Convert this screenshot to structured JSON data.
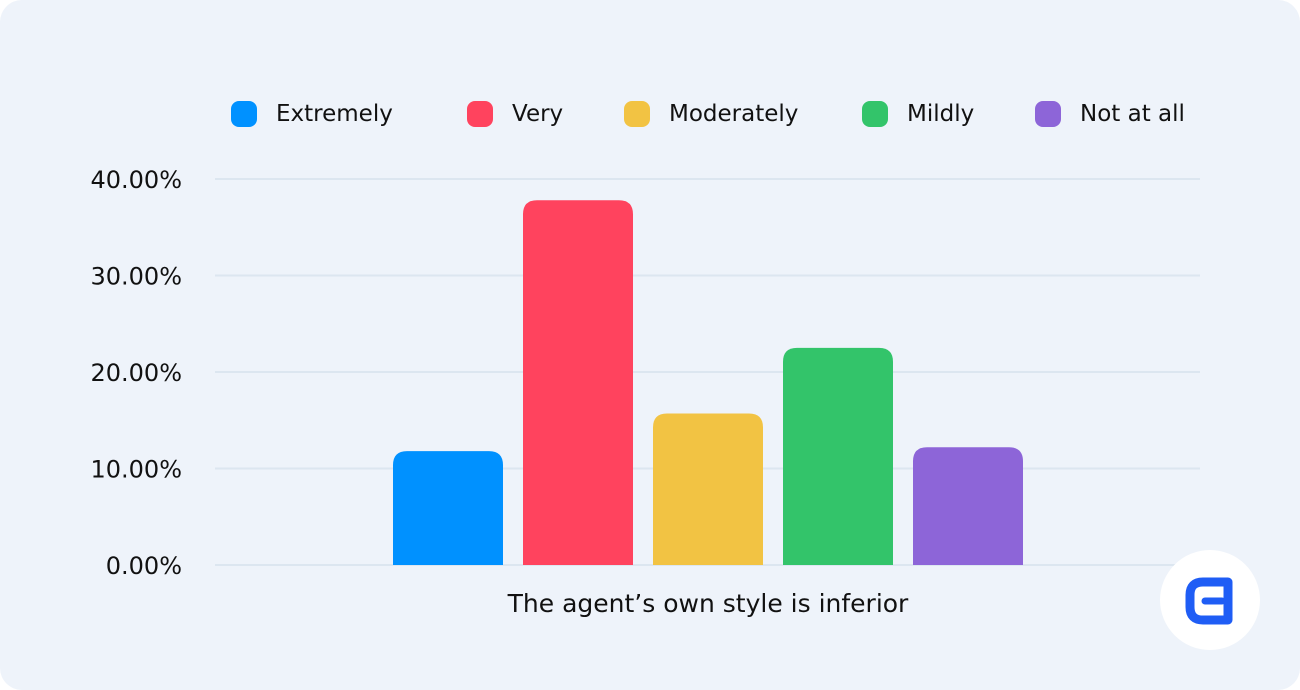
{
  "chart_data": {
    "type": "bar",
    "categories": [
      "The agent’s own style is inferior"
    ],
    "xlabel": "The agent’s own style is inferior",
    "ylim": [
      0,
      40
    ],
    "yticks": [
      "0.00%",
      "10.00%",
      "20.00%",
      "30.00%",
      "40.00%"
    ],
    "grid": true,
    "legend_position": "top",
    "series": [
      {
        "name": "Extremely",
        "values": [
          11.8
        ],
        "color": "#0091ff"
      },
      {
        "name": "Very",
        "values": [
          37.8
        ],
        "color": "#ff435e"
      },
      {
        "name": "Moderately",
        "values": [
          15.7
        ],
        "color": "#f2c343"
      },
      {
        "name": "Mildly",
        "values": [
          22.5
        ],
        "color": "#33c46a"
      },
      {
        "name": "Not at all",
        "values": [
          12.2
        ],
        "color": "#8d65d8"
      }
    ]
  },
  "colors": {
    "background": "#eef3fa",
    "gridline": "#dce6f0",
    "text": "#111111",
    "logo_accent": "#1f5df5"
  },
  "logo": {
    "icon": "brand-logo-icon"
  }
}
